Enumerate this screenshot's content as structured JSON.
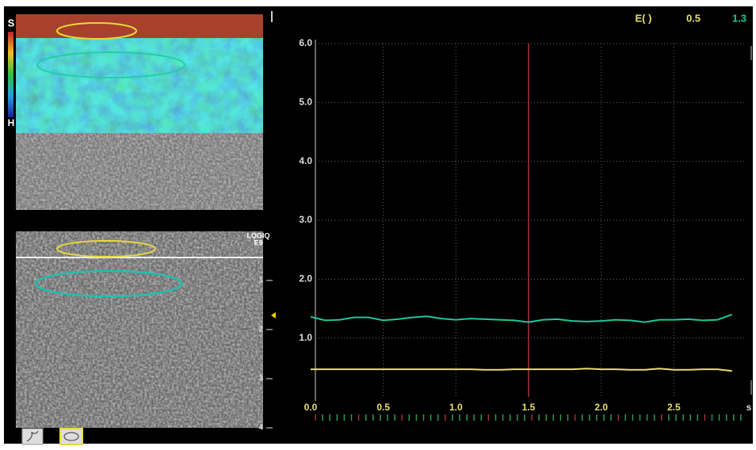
{
  "chart_data": {
    "type": "line",
    "x": [
      0.0,
      0.1,
      0.2,
      0.3,
      0.4,
      0.5,
      0.6,
      0.7,
      0.8,
      0.9,
      1.0,
      1.1,
      1.2,
      1.3,
      1.4,
      1.5,
      1.6,
      1.7,
      1.8,
      1.9,
      2.0,
      2.1,
      2.2,
      2.3,
      2.4,
      2.5,
      2.6,
      2.7,
      2.8,
      2.9
    ],
    "series": [
      {
        "color": "#1fc79a",
        "values": [
          1.36,
          1.3,
          1.31,
          1.35,
          1.35,
          1.3,
          1.32,
          1.35,
          1.37,
          1.33,
          1.31,
          1.33,
          1.32,
          1.31,
          1.3,
          1.27,
          1.31,
          1.32,
          1.29,
          1.28,
          1.29,
          1.31,
          1.3,
          1.27,
          1.31,
          1.31,
          1.32,
          1.3,
          1.31,
          1.4
        ]
      },
      {
        "color": "#e8e06a",
        "values": [
          0.47,
          0.47,
          0.47,
          0.47,
          0.47,
          0.47,
          0.47,
          0.47,
          0.47,
          0.47,
          0.47,
          0.47,
          0.46,
          0.46,
          0.47,
          0.47,
          0.47,
          0.47,
          0.47,
          0.48,
          0.47,
          0.47,
          0.46,
          0.46,
          0.48,
          0.46,
          0.46,
          0.47,
          0.47,
          0.44
        ]
      }
    ],
    "xlim": [
      0,
      3
    ],
    "ylim": [
      0,
      6
    ],
    "xticks": [
      {
        "value": 0,
        "label": "0.0"
      },
      0.5,
      {
        "value": 1,
        "label": "1.0"
      },
      1.5,
      {
        "value": 2,
        "label": "2.0"
      },
      2.5
    ],
    "yticks": [
      {
        "value": 1,
        "label": "1.0"
      },
      {
        "value": 2,
        "label": "2.0"
      },
      {
        "value": 3,
        "label": "3.0"
      },
      {
        "value": 4,
        "label": "4.0"
      },
      {
        "value": 5,
        "label": "5.0"
      },
      {
        "value": 6,
        "label": "6.0"
      }
    ],
    "x_unit": "s",
    "grid": true,
    "cursor_x": 1.5,
    "cursor_color": "#b0303a"
  },
  "readout": {
    "label": "E( )",
    "values": [
      "0.5",
      "1.3"
    ],
    "colors": [
      "#e8e06a",
      "#1fc79a"
    ]
  },
  "image_labels": {
    "top_scale_top": "S",
    "top_scale_bottom": "H",
    "system": "LOGIQ",
    "model": "E9"
  },
  "depth_scale": [
    1,
    2,
    3,
    4
  ]
}
